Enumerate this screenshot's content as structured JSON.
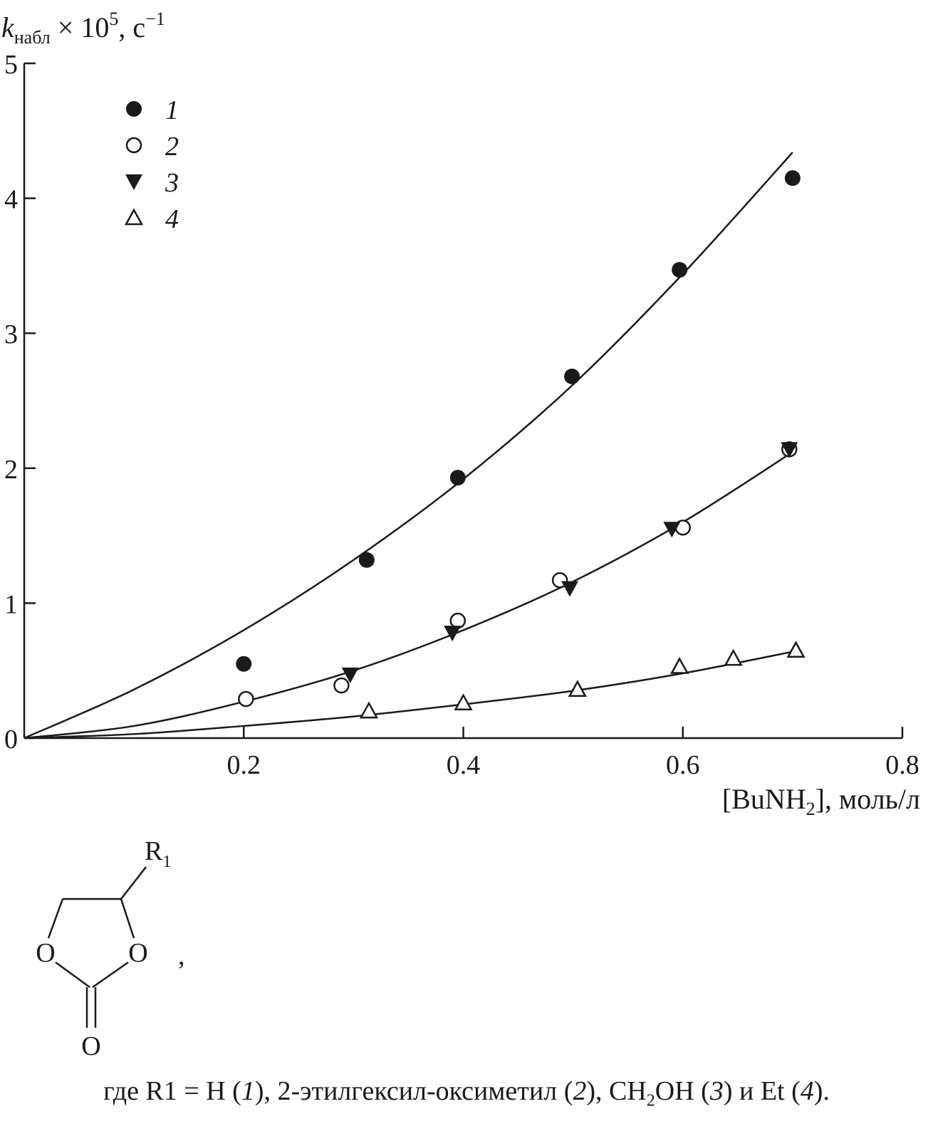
{
  "chart_data": {
    "type": "scatter",
    "ylabel": "k",
    "ylabel_sub": "набл",
    "ylabel_rest": " × 10",
    "ylabel_sup": "5",
    "ylabel_unit": ", с",
    "ylabel_unit_sup": "−1",
    "xlabel_open": "[BuNH",
    "xlabel_sub": "2",
    "xlabel_close": "], моль/л",
    "xlim": [
      0,
      0.8
    ],
    "ylim": [
      0,
      5
    ],
    "xticks": [
      0.2,
      0.4,
      0.6,
      0.8
    ],
    "xtick_labels": [
      "0.2",
      "0.4",
      "0.6",
      "0.8"
    ],
    "yticks": [
      0,
      1,
      2,
      3,
      4,
      5
    ],
    "ytick_labels": [
      "0",
      "1",
      "2",
      "3",
      "4",
      "5"
    ],
    "grid": false,
    "legend_position": "top-left",
    "series": [
      {
        "name": "1",
        "marker": "filled-circle",
        "x": [
          0.2,
          0.312,
          0.395,
          0.499,
          0.597,
          0.7
        ],
        "y": [
          0.55,
          1.32,
          1.93,
          2.68,
          3.47,
          4.15
        ],
        "fit": {
          "x": [
            0,
            0.1,
            0.2,
            0.3,
            0.4,
            0.5,
            0.6,
            0.7
          ],
          "y": [
            0,
            0.36,
            0.8,
            1.32,
            1.92,
            2.62,
            3.44,
            4.34
          ]
        }
      },
      {
        "name": "2",
        "marker": "open-circle",
        "x": [
          0.202,
          0.289,
          0.395,
          0.488,
          0.6,
          0.697
        ],
        "y": [
          0.29,
          0.39,
          0.87,
          1.17,
          1.56,
          2.14
        ],
        "fit": {
          "x": [
            0,
            0.1,
            0.2,
            0.3,
            0.4,
            0.5,
            0.6,
            0.7
          ],
          "y": [
            0,
            0.09,
            0.27,
            0.5,
            0.8,
            1.16,
            1.6,
            2.12
          ]
        }
      },
      {
        "name": "3",
        "marker": "filled-triangle-down",
        "x": [
          0.297,
          0.39,
          0.497,
          0.59,
          0.697
        ],
        "y": [
          0.47,
          0.78,
          1.11,
          1.55,
          2.14
        ]
      },
      {
        "name": "4",
        "marker": "open-triangle-up",
        "x": [
          0.314,
          0.4,
          0.504,
          0.597,
          0.646,
          0.703
        ],
        "y": [
          0.2,
          0.26,
          0.36,
          0.53,
          0.59,
          0.65
        ],
        "fit": {
          "x": [
            0,
            0.1,
            0.2,
            0.3,
            0.4,
            0.5,
            0.6,
            0.7
          ],
          "y": [
            0,
            0.03,
            0.09,
            0.16,
            0.25,
            0.35,
            0.48,
            0.64
          ]
        }
      }
    ]
  },
  "structure": {
    "substituent": "R",
    "substituent_sub": "1",
    "ring_oxygen_left": "O",
    "ring_oxygen_right": "O",
    "carbonyl_oxygen": "O",
    "comma": ","
  },
  "caption": {
    "p1": "где R1 = H (",
    "n1": "1",
    "p2": "), 2-этилгексил-оксиметил (",
    "n2": "2",
    "p3": "), CH",
    "sub": "2",
    "p4": "OH (",
    "n3": "3",
    "p5": ") и Et (",
    "n4": "4",
    "p6": ")."
  }
}
